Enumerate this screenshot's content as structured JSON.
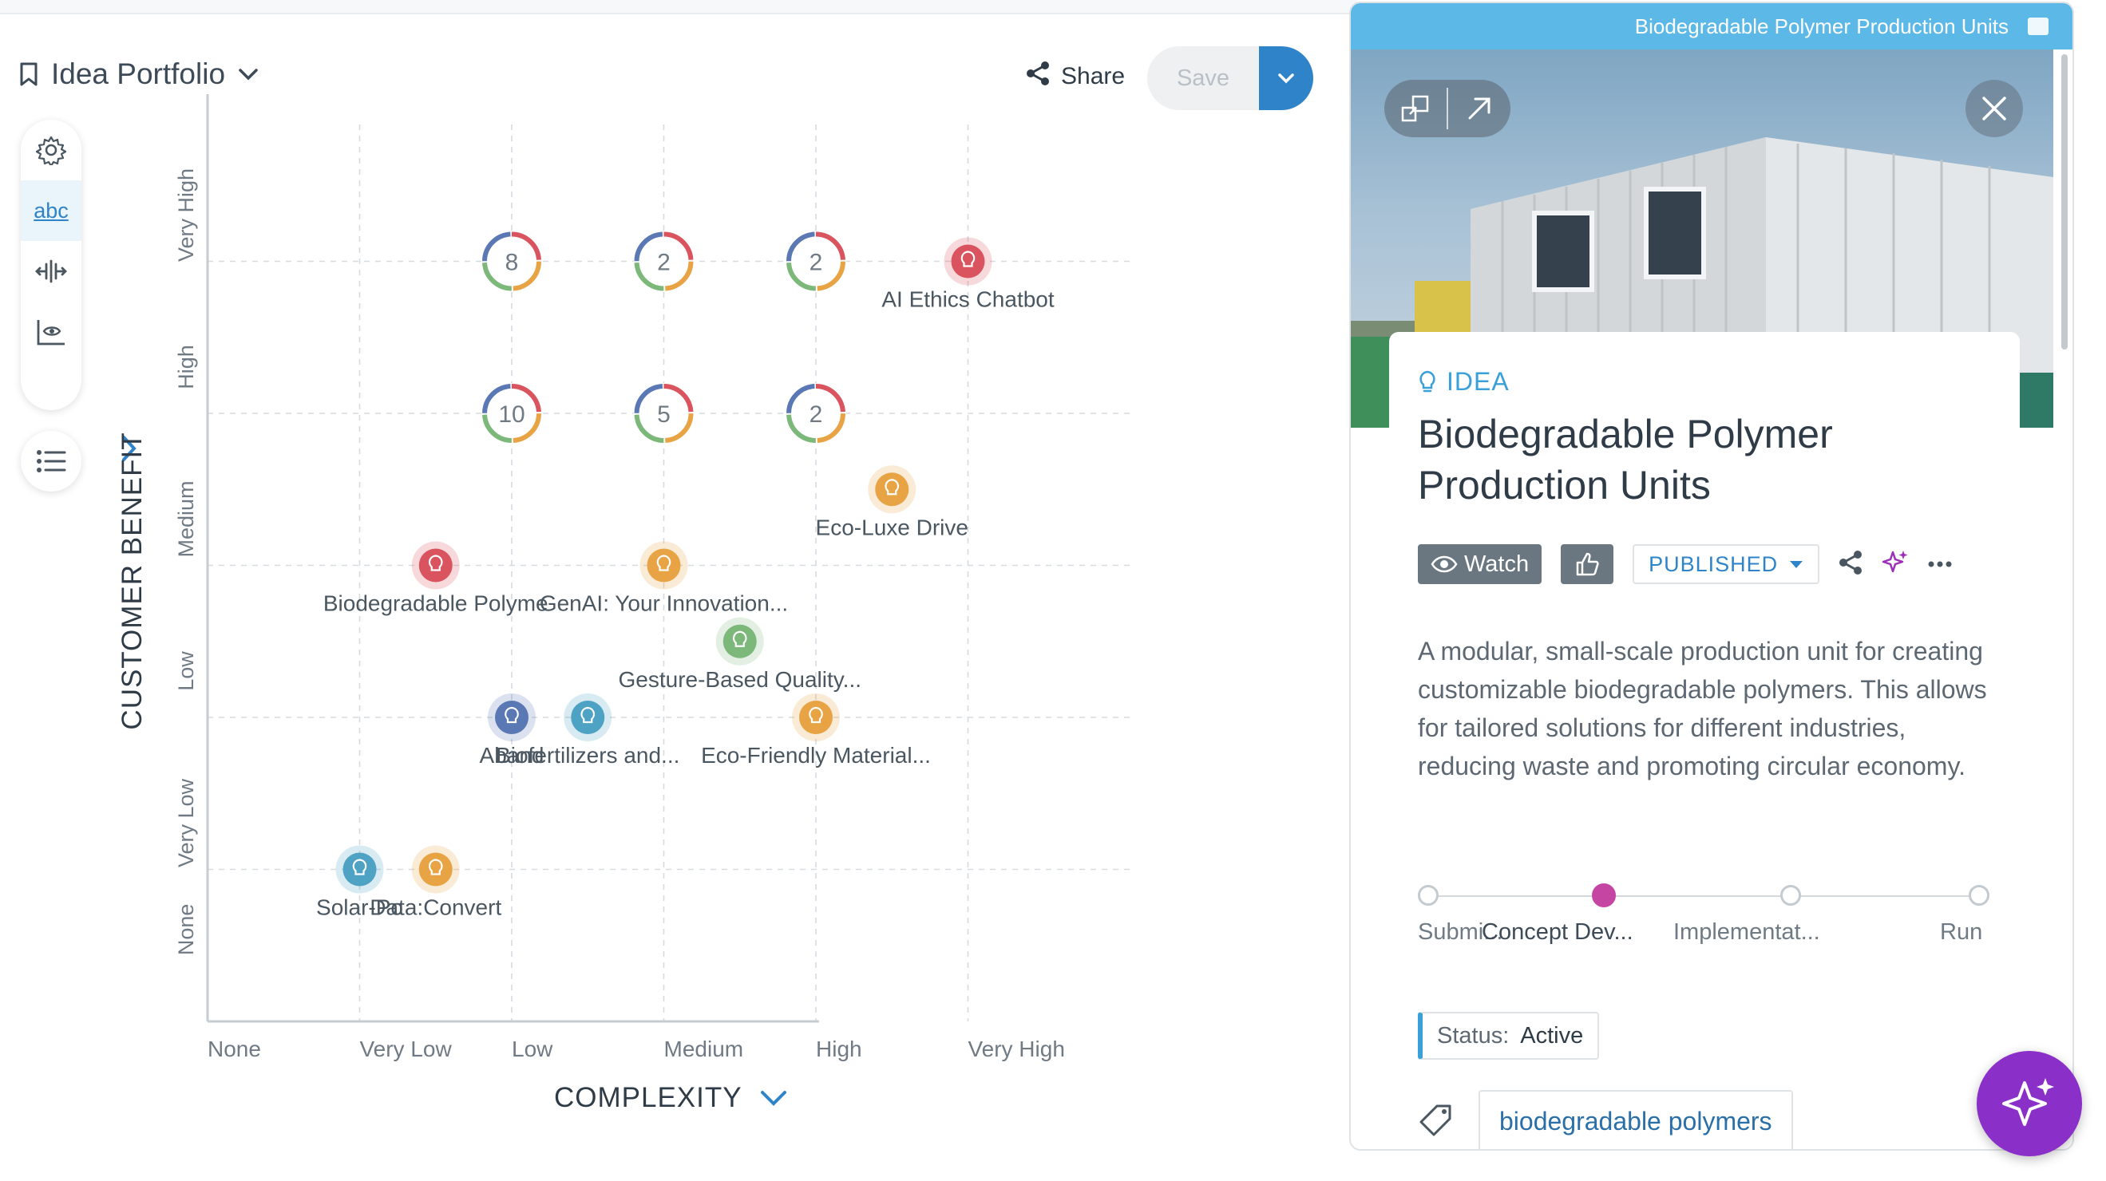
{
  "header": {
    "portfolio_title": "Idea Portfolio",
    "share_label": "Share",
    "save_label": "Save"
  },
  "toolbar": {
    "abc_label": "abc"
  },
  "chart_data": {
    "type": "scatter",
    "xlabel": "COMPLEXITY",
    "ylabel": "CUSTOMER BENEFIT",
    "x_categories": [
      "None",
      "Very Low",
      "Low",
      "Medium",
      "High",
      "Very High"
    ],
    "y_categories": [
      "None",
      "Very Low",
      "Low",
      "Medium",
      "High",
      "Very High"
    ],
    "grid": true,
    "clusters": [
      {
        "x": 2,
        "y": 5,
        "count": "8"
      },
      {
        "x": 3,
        "y": 5,
        "count": "2"
      },
      {
        "x": 4,
        "y": 5,
        "count": "2"
      },
      {
        "x": 2,
        "y": 4,
        "count": "10"
      },
      {
        "x": 3,
        "y": 4,
        "count": "5"
      },
      {
        "x": 4,
        "y": 4,
        "count": "2"
      }
    ],
    "ideas": [
      {
        "x": 5,
        "y": 5,
        "label": "AI Ethics Chatbot",
        "color": "#d9545e"
      },
      {
        "x": 4.5,
        "y": 3.5,
        "label": "Eco-Luxe Drive",
        "color": "#e8a444"
      },
      {
        "x": 1.5,
        "y": 3,
        "label": "Biodegradable Polyme",
        "color": "#d9545e"
      },
      {
        "x": 3,
        "y": 3,
        "label": "GenAI: Your Innovation...",
        "color": "#e8a444"
      },
      {
        "x": 3.5,
        "y": 2.5,
        "label": "Gesture-Based Quality...",
        "color": "#7cb87a"
      },
      {
        "x": 2,
        "y": 2,
        "label": "Aband",
        "color": "#5a78b3"
      },
      {
        "x": 2.5,
        "y": 2,
        "label": "Biofertilizers and...",
        "color": "#4ea2c4"
      },
      {
        "x": 4,
        "y": 2,
        "label": "Eco-Friendly Material...",
        "color": "#e8a444"
      },
      {
        "x": 1,
        "y": 1,
        "label": "Solar-Po",
        "color": "#4ea2c4"
      },
      {
        "x": 1.5,
        "y": 1,
        "label": "Data:Convert",
        "color": "#e8a444"
      }
    ]
  },
  "panel": {
    "bar_title": "Biodegradable Polymer Production Units",
    "type_label": "IDEA",
    "title": "Biodegradable Polymer Production Units",
    "watch_label": "Watch",
    "status_dropdown": "PUBLISHED",
    "description": "A modular, small-scale production unit for creating customizable biodegradable polymers. This allows for tailored solutions for different industries, reducing waste and promoting circular economy.",
    "stages": [
      "Submi...",
      "Concept Dev...",
      "Implementat...",
      "Run"
    ],
    "current_stage": 1,
    "status_key": "Status:",
    "status_value": "Active",
    "tag": "biodegradable polymers"
  },
  "colors": {
    "accent": "#2f84c9",
    "stage_active": "#c545a3",
    "ai_button": "#8a2fc8",
    "panel_bar": "#5cb8e6"
  }
}
